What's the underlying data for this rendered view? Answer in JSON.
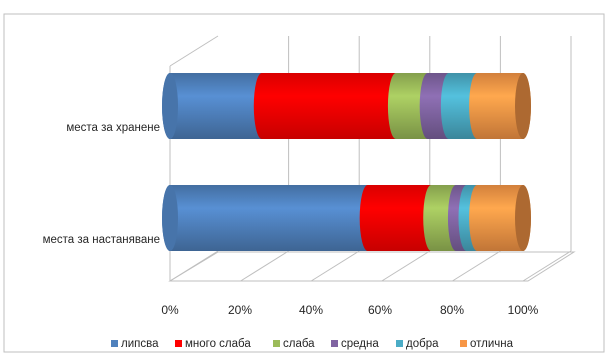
{
  "chart_data": {
    "type": "bar",
    "orientation": "horizontal",
    "stacked": "percent",
    "style": "3d-cylinder",
    "categories": [
      "места за хранене",
      "места за настаняване"
    ],
    "series": [
      {
        "name": "липсва",
        "color": "#4F81BD",
        "values": [
          26,
          56
        ]
      },
      {
        "name": "много слаба",
        "color": "#FF0000",
        "values": [
          38,
          18
        ]
      },
      {
        "name": "слаба",
        "color": "#9BBB59",
        "values": [
          9,
          7
        ]
      },
      {
        "name": "средна",
        "color": "#8064A2",
        "values": [
          6,
          3
        ]
      },
      {
        "name": "добра",
        "color": "#4BACC6",
        "values": [
          8,
          3
        ]
      },
      {
        "name": "отлична",
        "color": "#F79646",
        "values": [
          13,
          13
        ]
      }
    ],
    "xlim": [
      0,
      100
    ],
    "x_ticks": [
      "0%",
      "20%",
      "40%",
      "60%",
      "80%",
      "100%"
    ],
    "grid": true,
    "legend": "bottom"
  }
}
